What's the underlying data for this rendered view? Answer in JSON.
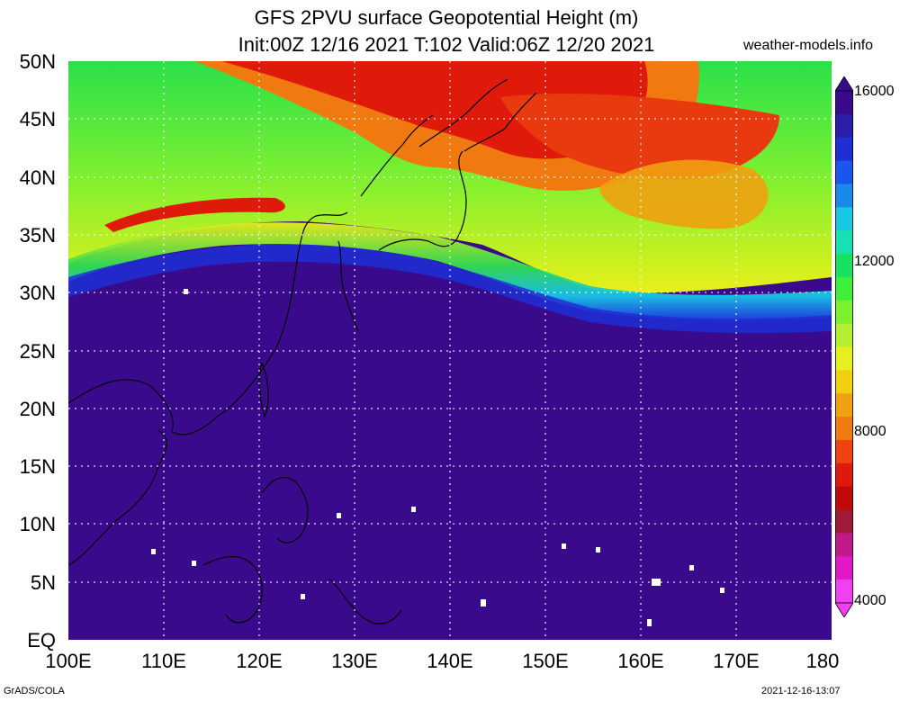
{
  "header": {
    "title_line1": "GFS 2PVU surface Geopotential Height (m)",
    "title_line2": "Init:00Z 12/16 2021 T:102 Valid:06Z 12/20 2021",
    "site": "weather-models.info"
  },
  "axes": {
    "lat_labels": [
      "50N",
      "45N",
      "40N",
      "35N",
      "30N",
      "25N",
      "20N",
      "15N",
      "10N",
      "5N",
      "EQ"
    ],
    "lon_labels": [
      "100E",
      "110E",
      "120E",
      "130E",
      "140E",
      "150E",
      "160E",
      "170E",
      "180"
    ],
    "lat_range": [
      0,
      50
    ],
    "lon_range": [
      100,
      180
    ],
    "grid": "dotted"
  },
  "colorbar": {
    "labels": [
      "16000",
      "12000",
      "8000",
      "4000"
    ],
    "range": [
      4000,
      16000
    ],
    "colors": [
      "#3a0a8c",
      "#2b1fa8",
      "#1e2fd6",
      "#1a55f0",
      "#1a8ae8",
      "#18c6e6",
      "#18e0b0",
      "#18e060",
      "#3ef03a",
      "#7af02e",
      "#b4f030",
      "#e6f020",
      "#f0d010",
      "#f0a010",
      "#f07a10",
      "#f04410",
      "#e01a0a",
      "#c00a0a",
      "#a01a3a",
      "#c01a8a",
      "#e018c8",
      "#f040f0"
    ]
  },
  "footer": {
    "left": "GrADS/COLA",
    "right": "2021-12-16-13:07"
  }
}
